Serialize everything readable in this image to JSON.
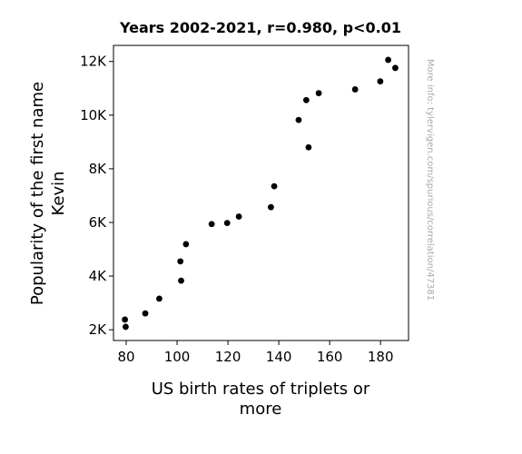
{
  "chart_data": {
    "type": "scatter",
    "title": "Years 2002-2021, r=0.980, p<0.01",
    "xlabel_lines": [
      "US birth rates of triplets or",
      "more"
    ],
    "ylabel_lines": [
      "Popularity of the first name",
      "Kevin"
    ],
    "xlim": [
      75,
      191
    ],
    "ylim": [
      1600,
      12600
    ],
    "x_ticks": [
      80,
      100,
      120,
      140,
      160,
      180
    ],
    "x_tick_labels": [
      "80",
      "100",
      "120",
      "140",
      "160",
      "180"
    ],
    "y_ticks": [
      2000,
      4000,
      6000,
      8000,
      10000,
      12000
    ],
    "y_tick_labels": [
      "2K",
      "4K",
      "6K",
      "8K",
      "10K",
      "12K"
    ],
    "grid": false,
    "marker_color": "#000000",
    "points": [
      {
        "x": 79.5,
        "y": 2380
      },
      {
        "x": 79.8,
        "y": 2110
      },
      {
        "x": 87.5,
        "y": 2610
      },
      {
        "x": 93.0,
        "y": 3160
      },
      {
        "x": 101.3,
        "y": 4550
      },
      {
        "x": 101.6,
        "y": 3830
      },
      {
        "x": 103.5,
        "y": 5190
      },
      {
        "x": 113.6,
        "y": 5940
      },
      {
        "x": 119.7,
        "y": 5980
      },
      {
        "x": 124.3,
        "y": 6220
      },
      {
        "x": 136.9,
        "y": 6570
      },
      {
        "x": 138.2,
        "y": 7350
      },
      {
        "x": 147.8,
        "y": 9820
      },
      {
        "x": 150.8,
        "y": 10560
      },
      {
        "x": 151.7,
        "y": 8800
      },
      {
        "x": 155.7,
        "y": 10820
      },
      {
        "x": 170.0,
        "y": 10960
      },
      {
        "x": 179.9,
        "y": 11260
      },
      {
        "x": 183.0,
        "y": 12060
      },
      {
        "x": 185.8,
        "y": 11760
      }
    ],
    "watermark": "More info: tylervigen.com/spurious/correlation/47381"
  }
}
